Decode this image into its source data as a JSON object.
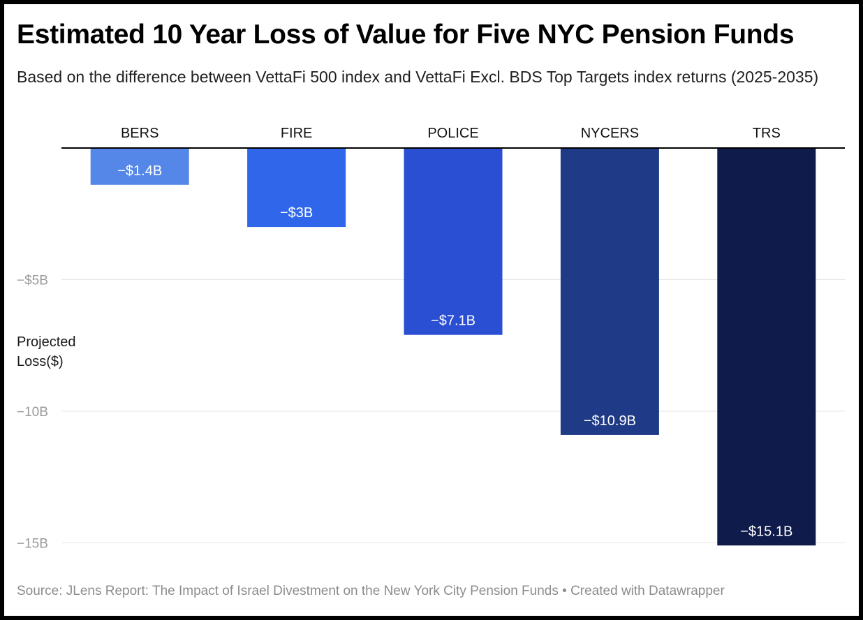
{
  "chart_data": {
    "type": "bar",
    "title": "Estimated 10 Year Loss of Value for Five NYC Pension Funds",
    "subtitle": "Based on the difference between VettaFi 500 index and VettaFi Excl. BDS Top Targets index returns (2025-2035)",
    "ylabel_lines": [
      "Projected",
      "Loss($)"
    ],
    "categories": [
      "BERS",
      "FIRE",
      "POLICE",
      "NYCERS",
      "TRS"
    ],
    "values": [
      -1.4,
      -3,
      -7.1,
      -10.9,
      -15.1
    ],
    "value_labels": [
      "−$1.4B",
      "−$3B",
      "−$7.1B",
      "−$10.9B",
      "−$15.1B"
    ],
    "colors": [
      "#5487e8",
      "#2f66ea",
      "#2a4fd3",
      "#1f3a86",
      "#0f1b4b"
    ],
    "ylim": [
      -15.1,
      0
    ],
    "yticks": [
      -5,
      -10,
      -15
    ],
    "ytick_labels": [
      "−$5B",
      "−10B",
      "−15B"
    ],
    "grid": true,
    "source": "Source: JLens Report: The Impact of Israel Divestment on the New York City Pension Funds • Created with Datawrapper"
  }
}
